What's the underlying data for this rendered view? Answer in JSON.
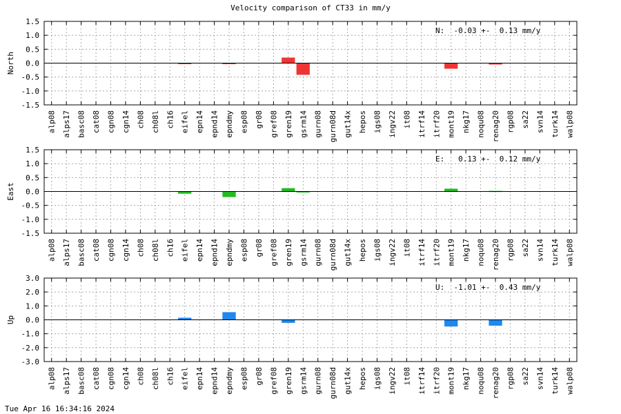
{
  "title": "Velocity comparison of CT33 in mm/y",
  "footer": "Tue Apr 16 16:34:16 2024",
  "chart_data": {
    "type": "bar",
    "categories": [
      "alp08",
      "alps17",
      "basc08",
      "cat08",
      "cgn08",
      "cgn14",
      "ch08",
      "ch08l",
      "ch16",
      "eifel",
      "epn14",
      "epnd14",
      "epndmy",
      "esp08",
      "gr08",
      "gref08",
      "gren19",
      "gsrm14",
      "gurn08",
      "gurn08d",
      "gut14x",
      "hepos",
      "igs08",
      "ingv22",
      "it08",
      "itrf14",
      "itrf20",
      "mont19",
      "nkg17",
      "noqu08",
      "renag20",
      "rgp08",
      "sa22",
      "svn14",
      "turk14",
      "walp08"
    ],
    "grid": true,
    "panels": [
      {
        "ylabel": "North",
        "ylim": [
          -1.5,
          1.5
        ],
        "yticks": [
          1.5,
          1.0,
          0.5,
          0.0,
          -0.5,
          -1.0,
          -1.5
        ],
        "tick_labels": [
          "1.5",
          "1.0",
          "0.5",
          "0.0",
          "-0.5",
          "-1.0",
          "-1.5"
        ],
        "color": "#ef3434",
        "annotation": "N:  -0.03 +-  0.13 mm/y",
        "values": [
          0,
          0,
          0,
          0,
          0,
          0,
          0,
          0,
          0,
          -0.03,
          0,
          0,
          -0.03,
          0,
          0,
          0,
          0.2,
          -0.42,
          0,
          0,
          0,
          0,
          0,
          0,
          0,
          0,
          0,
          -0.2,
          0,
          0,
          -0.05,
          0,
          0,
          0,
          0,
          0
        ]
      },
      {
        "ylabel": "East",
        "ylim": [
          -1.5,
          1.5
        ],
        "yticks": [
          1.5,
          1.0,
          0.5,
          0.0,
          -0.5,
          -1.0,
          -1.5
        ],
        "tick_labels": [
          "1.5",
          "1.0",
          "0.5",
          "0.0",
          "-0.5",
          "-1.0",
          "-1.5"
        ],
        "color": "#22bb22",
        "annotation": "E:   0.13 +-  0.12 mm/y",
        "values": [
          0,
          0,
          0,
          0,
          0,
          0,
          0,
          0,
          0,
          -0.08,
          0,
          0,
          -0.2,
          0,
          0,
          0,
          0.12,
          -0.02,
          0,
          0,
          0,
          0,
          0,
          0,
          0,
          0,
          0,
          0.1,
          0,
          0,
          0.02,
          0,
          0,
          0,
          0,
          0
        ]
      },
      {
        "ylabel": "Up",
        "ylim": [
          -3.0,
          3.0
        ],
        "yticks": [
          3.0,
          2.0,
          1.0,
          0.0,
          -1.0,
          -2.0,
          -3.0
        ],
        "tick_labels": [
          "3.0",
          "2.0",
          "1.0",
          "0.0",
          "-1.0",
          "-2.0",
          "-3.0"
        ],
        "color": "#1e88ee",
        "annotation": "U:  -1.01 +-  0.43 mm/y",
        "values": [
          0,
          0,
          0,
          0,
          0,
          0,
          0,
          0,
          0,
          0.15,
          0,
          0,
          0.55,
          0,
          0,
          0,
          -0.22,
          0,
          0,
          0,
          0,
          0,
          0,
          0,
          0,
          0,
          0,
          -0.48,
          0,
          0,
          -0.42,
          0,
          0,
          0,
          0,
          0
        ]
      }
    ]
  }
}
